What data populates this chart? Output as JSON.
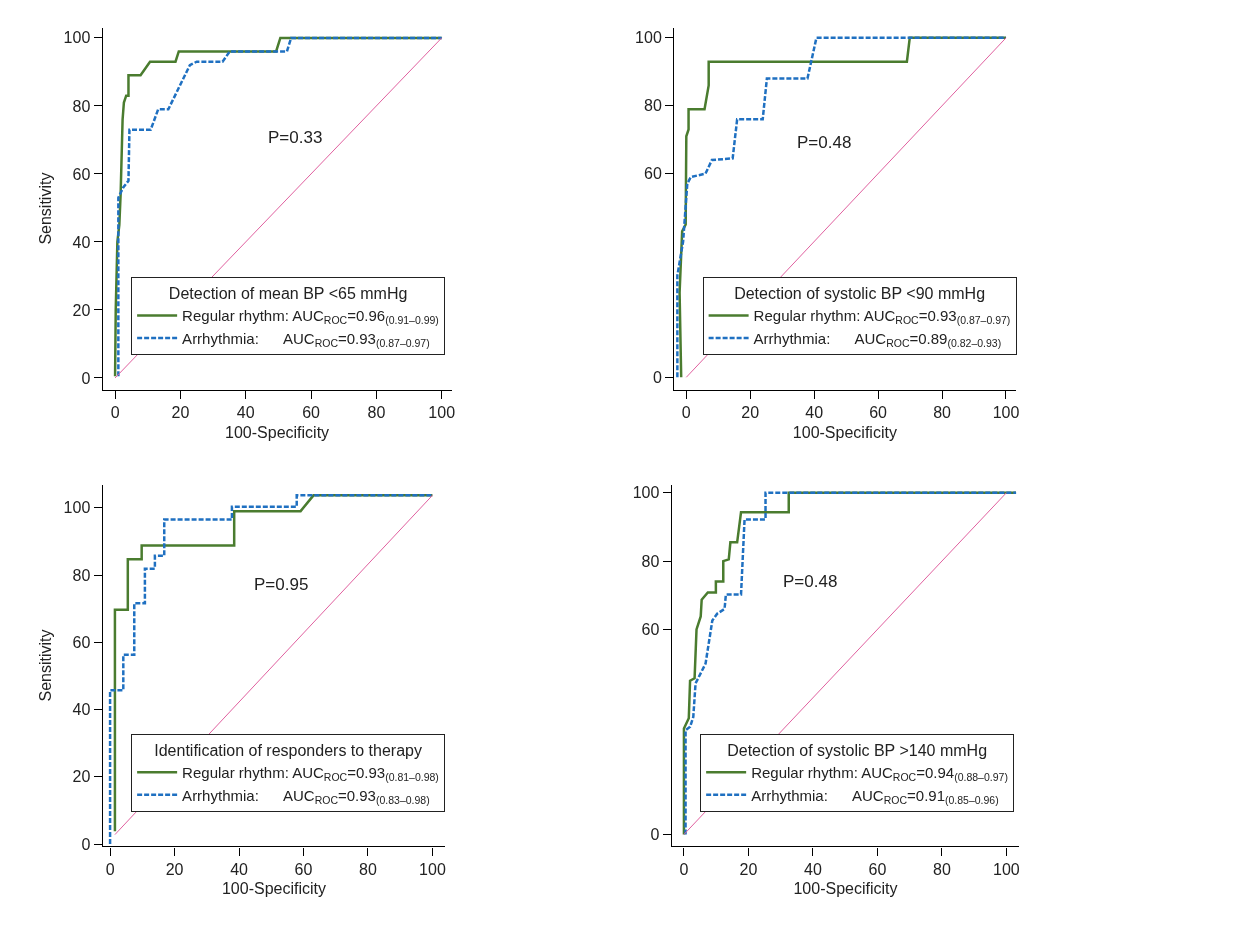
{
  "chart_data": [
    {
      "type": "line",
      "xlabel": "100-Specificity",
      "ylabel": "Sensitivity",
      "legend_title": "Detection of mean BP <65 mmHg",
      "legend": "bottom right",
      "marker": "none",
      "annotations": [
        "P=0.33"
      ],
      "xlim": [
        -3.8,
        103
      ],
      "ylim": [
        -3.4,
        103
      ],
      "xticks": [
        0,
        20,
        40,
        60,
        80,
        100
      ],
      "yticks": [
        0,
        20,
        40,
        60,
        80,
        100
      ],
      "series": [
        {
          "name": "Regular rhythm: AUC$_{ROC}$=0.96$_{(0.91–0.99)}$",
          "color": "#4a7c2f",
          "line_style": "solid",
          "x": [
            0,
            0.2,
            0.7,
            1.3,
            1.7,
            2.3,
            2.7,
            3.4,
            4.1,
            4.1,
            7.8,
            10.7,
            18.5,
            19.5,
            49.3,
            50.6,
            100
          ],
          "values": [
            0.5,
            20,
            40,
            45,
            54,
            76,
            81,
            83,
            83,
            89,
            89,
            93,
            93,
            96,
            96,
            100,
            100
          ]
        },
        {
          "name": "Arrhythmia:      AUC$_{ROC}$=0.93$_{(0.87–0.97)}$",
          "color": "#1f70c1",
          "line_style": "dashed",
          "x": [
            1,
            1,
            2.5,
            4.1,
            4.4,
            10.9,
            13.2,
            16.3,
            22.9,
            25,
            32.9,
            35.1,
            52.6,
            53.9,
            100
          ],
          "values": [
            0.5,
            53,
            56,
            58,
            73,
            73,
            79,
            79,
            92,
            93,
            93,
            96,
            96,
            100,
            100
          ]
        },
        {
          "color": "#e0609f",
          "line_style": "solid",
          "x": [
            0,
            100
          ],
          "values": [
            0,
            100
          ]
        }
      ]
    },
    {
      "type": "line",
      "xlabel": "100-Specificity",
      "legend_title": "Detection of systolic BP <90 mmHg",
      "legend": "bottom right",
      "marker": "none",
      "annotations": [
        "P=0.48"
      ],
      "xlim": [
        -3.8,
        103
      ],
      "ylim": [
        -3.6,
        103
      ],
      "xticks": [
        0,
        20,
        40,
        60,
        80,
        100
      ],
      "yticks": [
        0,
        60,
        80,
        100
      ],
      "series": [
        {
          "name": "Regular rhythm: AUC$_{ROC}$=0.93$_{(0.87–0.97)}$",
          "color": "#4a7c2f",
          "line_style": "solid",
          "x": [
            -1.6,
            -2.1,
            -1.3,
            -0.2,
            0,
            0.7,
            0.7,
            5.7,
            7,
            7,
            69,
            69.9,
            100
          ],
          "values": [
            0,
            25,
            43,
            45,
            71,
            73,
            79,
            79,
            86,
            93,
            93,
            100,
            100
          ]
        },
        {
          "name": "Arrhythmia:      AUC$_{ROC}$=0.89$_{(0.82–0.93)}$",
          "color": "#1f70c1",
          "line_style": "dashed",
          "x": [
            -2.8,
            -2.8,
            -1,
            0.3,
            1.4,
            6,
            8,
            14.5,
            15.9,
            23.9,
            25.2,
            37.9,
            40.7,
            100
          ],
          "values": [
            0,
            30,
            40,
            57,
            59,
            60,
            64,
            64.5,
            76,
            76,
            88,
            88,
            100,
            100
          ]
        },
        {
          "color": "#e0609f",
          "line_style": "solid",
          "x": [
            0,
            100
          ],
          "values": [
            0,
            100
          ]
        }
      ]
    },
    {
      "type": "line",
      "xlabel": "100-Specificity",
      "ylabel": "Sensitivity",
      "legend_title": "Identification of responders to therapy",
      "legend": "bottom right",
      "marker": "none",
      "annotations": [
        "P=0.95"
      ],
      "xlim": [
        -2.3,
        104
      ],
      "ylim": [
        -0.7,
        106.9
      ],
      "xticks": [
        0,
        20,
        40,
        60,
        80,
        100
      ],
      "yticks": [
        0,
        20,
        40,
        60,
        80,
        100
      ],
      "series": [
        {
          "name": "Regular rhythm: AUC$_{ROC}$=0.93$_{(0.81–0.98)}$",
          "color": "#4a7c2f",
          "line_style": "solid",
          "x": [
            1.5,
            1.5,
            5.5,
            5.5,
            9.8,
            9.8,
            38.5,
            38.5,
            59.1,
            63.1,
            100
          ],
          "values": [
            3.8,
            69.7,
            69.7,
            84.7,
            84.7,
            88.8,
            88.8,
            99,
            99,
            103.7,
            103.7
          ]
        },
        {
          "name": "Arrhythmia:      AUC$_{ROC}$=0.93$_{(0.83–0.98)}$",
          "color": "#1f70c1",
          "line_style": "dashed",
          "x": [
            0,
            0,
            4.1,
            4.1,
            7.5,
            7.5,
            10.8,
            10.8,
            13.9,
            13.9,
            16.8,
            16.8,
            37.8,
            37.8,
            57.9,
            57.9,
            100
          ],
          "values": [
            0,
            45.7,
            45.7,
            56.3,
            56.3,
            71.6,
            71.6,
            81.9,
            81.9,
            85.7,
            85.7,
            96.5,
            96.5,
            100.3,
            100.3,
            103.7,
            103.7
          ]
        },
        {
          "color": "#e0609f",
          "line_style": "solid",
          "x": [
            1.5,
            100
          ],
          "values": [
            2.8,
            103.7
          ]
        }
      ]
    },
    {
      "type": "line",
      "xlabel": "100-Specificity",
      "legend_title": "Detection of systolic BP >140 mmHg",
      "legend": "bottom right",
      "marker": "none",
      "annotations": [
        "P=0.48"
      ],
      "xlim": [
        -3.8,
        104
      ],
      "ylim": [
        -3.5,
        102.4
      ],
      "xticks": [
        0,
        20,
        40,
        60,
        80,
        100
      ],
      "yticks": [
        0,
        60,
        80,
        100
      ],
      "series": [
        {
          "name": "Regular rhythm: AUC$_{ROC}$=0.94$_{(0.88–0.97)}$",
          "color": "#4a7c2f",
          "line_style": "solid",
          "x": [
            0,
            0,
            1.5,
            1.9,
            3.3,
            3.9,
            5.2,
            5.5,
            7.4,
            9.9,
            9.9,
            12.2,
            12.2,
            13.9,
            14.4,
            16.5,
            17.7,
            32.5,
            32.5,
            103
          ],
          "values": [
            0,
            31,
            34,
            45,
            45.7,
            60,
            63.8,
            68.7,
            70.8,
            70.8,
            74,
            74,
            80,
            80.5,
            85.5,
            85.5,
            94.3,
            94.3,
            100,
            100
          ]
        },
        {
          "name": "Arrhythmia:      AUC$_{ROC}$=0.91$_{(0.85–0.96)}$",
          "color": "#1f70c1",
          "line_style": "dashed",
          "x": [
            0.5,
            0.5,
            1.9,
            2.9,
            3.6,
            6.7,
            8.8,
            10.3,
            12.6,
            13,
            17.7,
            18.8,
            25.3,
            25.3,
            103
          ],
          "values": [
            0,
            30.5,
            31.5,
            34.4,
            44.2,
            50,
            62.6,
            64.6,
            66,
            70.2,
            70.2,
            92.2,
            92.2,
            100,
            100
          ]
        },
        {
          "color": "#e0609f",
          "line_style": "solid",
          "x": [
            0,
            100
          ],
          "values": [
            0,
            100
          ]
        }
      ]
    }
  ]
}
